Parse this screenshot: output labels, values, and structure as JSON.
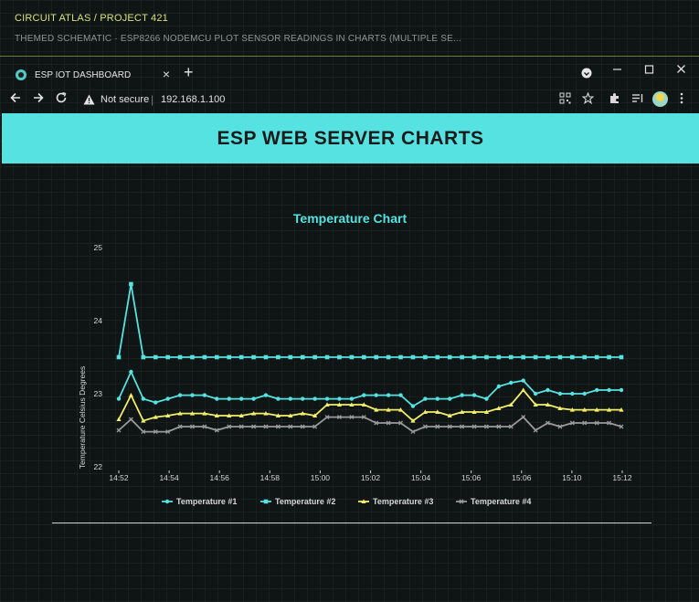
{
  "atlas": {
    "title": "CIRCUIT ATLAS / PROJECT 421",
    "subtitle": "THEMED SCHEMATIC · ESP8266 NODEMCU PLOT SENSOR READINGS IN CHARTS (MULTIPLE SE..."
  },
  "browser": {
    "tab_title": "ESP IOT DASHBOARD",
    "tab_close": "×",
    "new_tab": "+",
    "not_secure": "Not secure",
    "url_sep": "|",
    "url": "192.168.1.100"
  },
  "page": {
    "title": "ESP WEB SERVER CHARTS"
  },
  "colors": {
    "accent": "#55e2e0",
    "series": [
      "#55e2e0",
      "#55e2e0",
      "#f2ee6b",
      "#9a9a9a"
    ]
  },
  "chart_data": {
    "type": "line",
    "title": "Temperature Chart",
    "ylabel": "Temperature Celsius Degrees",
    "xlabel": "",
    "ylim": [
      22,
      25
    ],
    "yticks": [
      "22",
      "23",
      "24",
      "25"
    ],
    "xticks": [
      "14:52",
      "14:54",
      "14:56",
      "14:58",
      "15:00",
      "15:02",
      "15:04",
      "15:06",
      "15:06",
      "15:10",
      "15:12"
    ],
    "legend_position": "bottom",
    "grid": false,
    "series": [
      {
        "name": "Temperature #1",
        "values": [
          22.93,
          23.3,
          22.93,
          22.88,
          22.93,
          22.98,
          22.98,
          22.98,
          22.93,
          22.93,
          22.93,
          22.93,
          22.98,
          22.93,
          22.93,
          22.93,
          22.93,
          22.93,
          22.93,
          22.93,
          22.98,
          22.98,
          22.98,
          22.98,
          22.83,
          22.93,
          22.93,
          22.93,
          22.98,
          22.98,
          22.93,
          23.1,
          23.15,
          23.18,
          23.0,
          23.05,
          23.0,
          23.0,
          23.0,
          23.05,
          23.05,
          23.05
        ]
      },
      {
        "name": "Temperature #2",
        "values": [
          23.5,
          24.5,
          23.5,
          23.5,
          23.5,
          23.5,
          23.5,
          23.5,
          23.5,
          23.5,
          23.5,
          23.5,
          23.5,
          23.5,
          23.5,
          23.5,
          23.5,
          23.5,
          23.5,
          23.5,
          23.5,
          23.5,
          23.5,
          23.5,
          23.5,
          23.5,
          23.5,
          23.5,
          23.5,
          23.5,
          23.5,
          23.5,
          23.5,
          23.5,
          23.5,
          23.5,
          23.5,
          23.5,
          23.5,
          23.5,
          23.5,
          23.5
        ]
      },
      {
        "name": "Temperature #3",
        "values": [
          22.65,
          22.98,
          22.63,
          22.68,
          22.7,
          22.73,
          22.73,
          22.73,
          22.7,
          22.7,
          22.7,
          22.73,
          22.73,
          22.7,
          22.7,
          22.73,
          22.7,
          22.85,
          22.85,
          22.85,
          22.85,
          22.78,
          22.78,
          22.78,
          22.63,
          22.75,
          22.75,
          22.7,
          22.75,
          22.75,
          22.75,
          22.8,
          22.85,
          23.05,
          22.85,
          22.85,
          22.8,
          22.78,
          22.78,
          22.78,
          22.78,
          22.78
        ]
      },
      {
        "name": "Temperature #4",
        "values": [
          22.5,
          22.65,
          22.48,
          22.48,
          22.48,
          22.55,
          22.55,
          22.55,
          22.5,
          22.55,
          22.55,
          22.55,
          22.55,
          22.55,
          22.55,
          22.55,
          22.55,
          22.68,
          22.68,
          22.68,
          22.68,
          22.6,
          22.6,
          22.6,
          22.48,
          22.55,
          22.55,
          22.55,
          22.55,
          22.55,
          22.55,
          22.55,
          22.55,
          22.68,
          22.5,
          22.6,
          22.55,
          22.6,
          22.6,
          22.6,
          22.6,
          22.55
        ]
      }
    ]
  }
}
